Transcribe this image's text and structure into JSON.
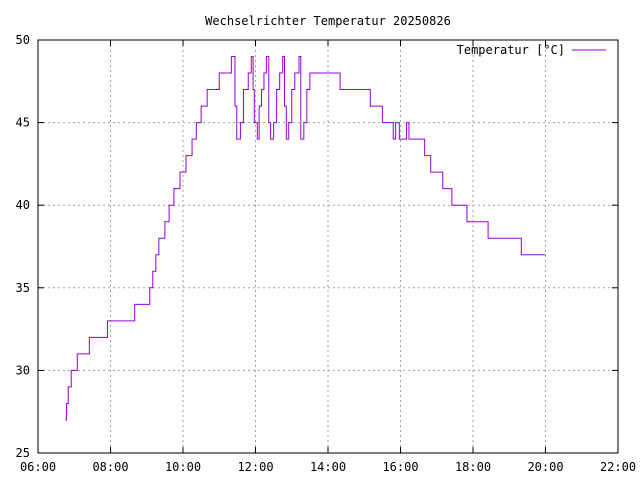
{
  "chart_data": {
    "type": "line",
    "title": "Wechselrichter Temperatur 20250826",
    "xlabel": "",
    "ylabel": "",
    "xlim": [
      "06:00",
      "22:00"
    ],
    "ylim": [
      25,
      50
    ],
    "x_ticks": [
      "06:00",
      "08:00",
      "10:00",
      "12:00",
      "14:00",
      "16:00",
      "18:00",
      "20:00",
      "22:00"
    ],
    "y_ticks": [
      "25",
      "30",
      "35",
      "40",
      "45",
      "50"
    ],
    "grid": true,
    "legend_position": "top-right",
    "series": [
      {
        "name": "Temperatur [°C]",
        "color": "#9400d3",
        "step": true,
        "points": [
          [
            "06:45",
            27
          ],
          [
            "06:47",
            28
          ],
          [
            "06:50",
            29
          ],
          [
            "06:55",
            30
          ],
          [
            "07:05",
            31
          ],
          [
            "07:25",
            32
          ],
          [
            "07:55",
            33
          ],
          [
            "08:40",
            34
          ],
          [
            "09:05",
            35
          ],
          [
            "09:10",
            36
          ],
          [
            "09:15",
            37
          ],
          [
            "09:20",
            38
          ],
          [
            "09:30",
            39
          ],
          [
            "09:37",
            40
          ],
          [
            "09:45",
            41
          ],
          [
            "09:55",
            42
          ],
          [
            "10:05",
            43
          ],
          [
            "10:15",
            44
          ],
          [
            "10:22",
            45
          ],
          [
            "10:30",
            46
          ],
          [
            "10:40",
            47
          ],
          [
            "11:00",
            48
          ],
          [
            "11:20",
            49
          ],
          [
            "11:26",
            46
          ],
          [
            "11:29",
            44
          ],
          [
            "11:35",
            45
          ],
          [
            "11:40",
            47
          ],
          [
            "11:48",
            48
          ],
          [
            "11:53",
            49
          ],
          [
            "11:56",
            47
          ],
          [
            "11:58",
            45
          ],
          [
            "12:03",
            44
          ],
          [
            "12:06",
            46
          ],
          [
            "12:10",
            47
          ],
          [
            "12:14",
            48
          ],
          [
            "12:18",
            49
          ],
          [
            "12:22",
            45
          ],
          [
            "12:25",
            44
          ],
          [
            "12:30",
            45
          ],
          [
            "12:35",
            47
          ],
          [
            "12:40",
            48
          ],
          [
            "12:45",
            49
          ],
          [
            "12:48",
            46
          ],
          [
            "12:51",
            44
          ],
          [
            "12:55",
            45
          ],
          [
            "13:00",
            47
          ],
          [
            "13:05",
            48
          ],
          [
            "13:12",
            49
          ],
          [
            "13:15",
            44
          ],
          [
            "13:20",
            45
          ],
          [
            "13:25",
            47
          ],
          [
            "13:30",
            48
          ],
          [
            "13:40",
            48
          ],
          [
            "14:20",
            47
          ],
          [
            "15:10",
            46
          ],
          [
            "15:30",
            45
          ],
          [
            "15:48",
            44
          ],
          [
            "15:52",
            45
          ],
          [
            "15:58",
            44
          ],
          [
            "16:10",
            45
          ],
          [
            "16:14",
            44
          ],
          [
            "16:40",
            43
          ],
          [
            "16:50",
            42
          ],
          [
            "17:10",
            41
          ],
          [
            "17:25",
            40
          ],
          [
            "17:50",
            39
          ],
          [
            "18:25",
            38
          ],
          [
            "19:20",
            37
          ],
          [
            "20:00",
            37
          ]
        ]
      }
    ]
  }
}
